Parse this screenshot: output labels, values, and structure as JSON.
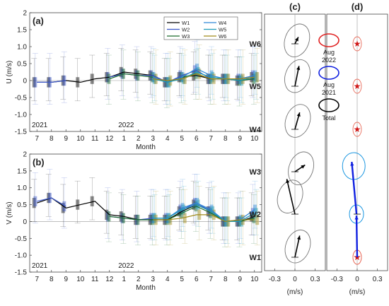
{
  "chart_data": [
    {
      "panel_label": "(a)",
      "type": "line",
      "ylabel": "U (m/s)",
      "xlabel": "Month",
      "ylim": [
        -1.5,
        2
      ],
      "yticks": [
        "-1.5",
        "-1.0",
        "-0.5",
        "0",
        "0.5",
        "1.0",
        "1.5",
        "2"
      ],
      "x_tick_labels": [
        "7",
        "8",
        "9",
        "10",
        "11",
        "12",
        "1",
        "2",
        "3",
        "4",
        "5",
        "6",
        "7",
        "8",
        "9",
        "10"
      ],
      "year_labels": [
        "2021",
        "2022"
      ],
      "legend": [
        "W1",
        "W2",
        "W3",
        "W4",
        "W5",
        "W6"
      ],
      "series": [
        {
          "name": "W1",
          "color": "#000000",
          "values": [
            -0.05,
            -0.05,
            0.0,
            -0.05,
            0.05,
            0.1,
            0.25,
            0.2,
            0.15,
            -0.05,
            0.1,
            0.15,
            0.05,
            0.05,
            0.0,
            0.1
          ]
        },
        {
          "name": "W2",
          "color": "#3a56c9",
          "values": [
            -0.05,
            -0.05,
            0.0,
            null,
            null,
            0.1,
            0.2,
            0.15,
            0.15,
            -0.05,
            0.15,
            0.3,
            0.05,
            0.05,
            0.05,
            0.15
          ]
        },
        {
          "name": "W3",
          "color": "#1b6b2a",
          "values": [
            null,
            null,
            null,
            null,
            null,
            0.05,
            0.2,
            0.15,
            0.1,
            -0.05,
            0.1,
            0.2,
            0.05,
            0.05,
            0.0,
            0.05
          ]
        },
        {
          "name": "W4",
          "color": "#2e86d6",
          "values": [
            null,
            null,
            null,
            null,
            null,
            null,
            null,
            null,
            0.1,
            -0.05,
            0.1,
            0.35,
            0.15,
            0.05,
            0.05,
            0.15
          ]
        },
        {
          "name": "W5",
          "color": "#1d9bb8",
          "values": [
            null,
            null,
            null,
            null,
            null,
            null,
            null,
            null,
            0.05,
            -0.05,
            0.05,
            0.25,
            0.1,
            0.05,
            0.0,
            0.1
          ]
        },
        {
          "name": "W6",
          "color": "#a08a1a",
          "values": [
            null,
            null,
            null,
            null,
            null,
            null,
            null,
            null,
            0.05,
            0.0,
            0.05,
            0.2,
            0.05,
            0.05,
            0.05,
            0.1
          ]
        }
      ]
    },
    {
      "panel_label": "(b)",
      "type": "line",
      "ylabel": "V (m/s)",
      "xlabel": "Month",
      "ylim": [
        -1.5,
        2
      ],
      "yticks": [
        "-1.5",
        "-1.0",
        "-0.5",
        "0",
        "0.5",
        "1.0",
        "1.5",
        "2"
      ],
      "x_tick_labels": [
        "7",
        "8",
        "9",
        "10",
        "11",
        "12",
        "1",
        "2",
        "3",
        "4",
        "5",
        "6",
        "7",
        "8",
        "9",
        "10"
      ],
      "year_labels": [
        "2021",
        "2022"
      ],
      "series": [
        {
          "name": "W1",
          "color": "#000000",
          "values": [
            0.55,
            0.7,
            0.4,
            0.5,
            0.6,
            0.2,
            0.15,
            0.05,
            0.05,
            0.05,
            0.3,
            0.5,
            0.3,
            0.0,
            0.0,
            0.15
          ]
        },
        {
          "name": "W2",
          "color": "#3a56c9",
          "values": [
            0.6,
            0.7,
            0.45,
            null,
            null,
            0.15,
            0.1,
            0.05,
            0.1,
            0.1,
            0.35,
            0.55,
            0.3,
            0.0,
            0.0,
            0.25
          ]
        },
        {
          "name": "W3",
          "color": "#1b6b2a",
          "values": [
            null,
            null,
            null,
            null,
            null,
            0.15,
            0.1,
            0.05,
            0.05,
            0.05,
            0.25,
            0.45,
            0.25,
            0.0,
            0.0,
            0.1
          ]
        },
        {
          "name": "W4",
          "color": "#2e86d6",
          "values": [
            null,
            null,
            null,
            null,
            null,
            null,
            null,
            null,
            0.1,
            0.1,
            0.4,
            0.55,
            0.35,
            0.0,
            0.05,
            0.35
          ]
        },
        {
          "name": "W5",
          "color": "#1d9bb8",
          "values": [
            null,
            null,
            null,
            null,
            null,
            null,
            null,
            null,
            0.1,
            0.1,
            0.35,
            0.5,
            0.3,
            0.0,
            0.0,
            0.25
          ]
        },
        {
          "name": "W6",
          "color": "#a08a1a",
          "values": [
            null,
            null,
            null,
            null,
            null,
            null,
            null,
            null,
            0.05,
            0.05,
            0.1,
            0.2,
            0.2,
            0.0,
            0.05,
            0.05
          ]
        }
      ]
    },
    {
      "panel_label": "(c)",
      "type": "scatter",
      "xlabel": "(m/s)",
      "x_tick_labels": [
        "-0.3",
        "0",
        "0.3"
      ],
      "xlim": [
        -0.45,
        0.45
      ],
      "levels": [
        "W6",
        "W5",
        "W4",
        "W3",
        "W2",
        "W1"
      ],
      "vectors": [
        {
          "level": "W6",
          "u": 0.05,
          "v": 0.1
        },
        {
          "level": "W5",
          "u": 0.06,
          "v": 0.3
        },
        {
          "level": "W4",
          "u": 0.07,
          "v": 0.25
        },
        {
          "level": "W3",
          "u": 0.15,
          "v": 0.1
        },
        {
          "level": "W2",
          "u": -0.12,
          "v": 0.52
        },
        {
          "level": "W1",
          "u": 0.07,
          "v": 0.32
        }
      ]
    },
    {
      "panel_label": "(d)",
      "type": "scatter",
      "xlabel": "(m/s)",
      "x_tick_labels": [
        "-0.3",
        "0",
        "0.3"
      ],
      "xlim": [
        -0.45,
        0.45
      ],
      "legend": [
        "Aug 2022",
        "Aug 2021",
        "Total"
      ],
      "legend_colors": [
        "#e02020",
        "#1020e0",
        "#000000"
      ],
      "vectors_aug2021": [
        {
          "level": "W3",
          "u": -0.06,
          "v": 0.3
        },
        {
          "level": "W2",
          "u": -0.01,
          "v": 0.1
        },
        {
          "level": "W1",
          "u": 0.0,
          "v": 0.05
        }
      ],
      "vectors_aug2022": [
        {
          "level": "W6",
          "u": 0.0,
          "v": 0.0
        },
        {
          "level": "W5",
          "u": 0.0,
          "v": 0.0
        },
        {
          "level": "W4",
          "u": 0.0,
          "v": 0.0
        },
        {
          "level": "W1",
          "u": 0.0,
          "v": 0.0
        }
      ]
    }
  ],
  "legend_text": {
    "aug2022": [
      "Aug",
      "2022"
    ],
    "aug2021": [
      "Aug",
      "2021"
    ],
    "total": "Total"
  }
}
